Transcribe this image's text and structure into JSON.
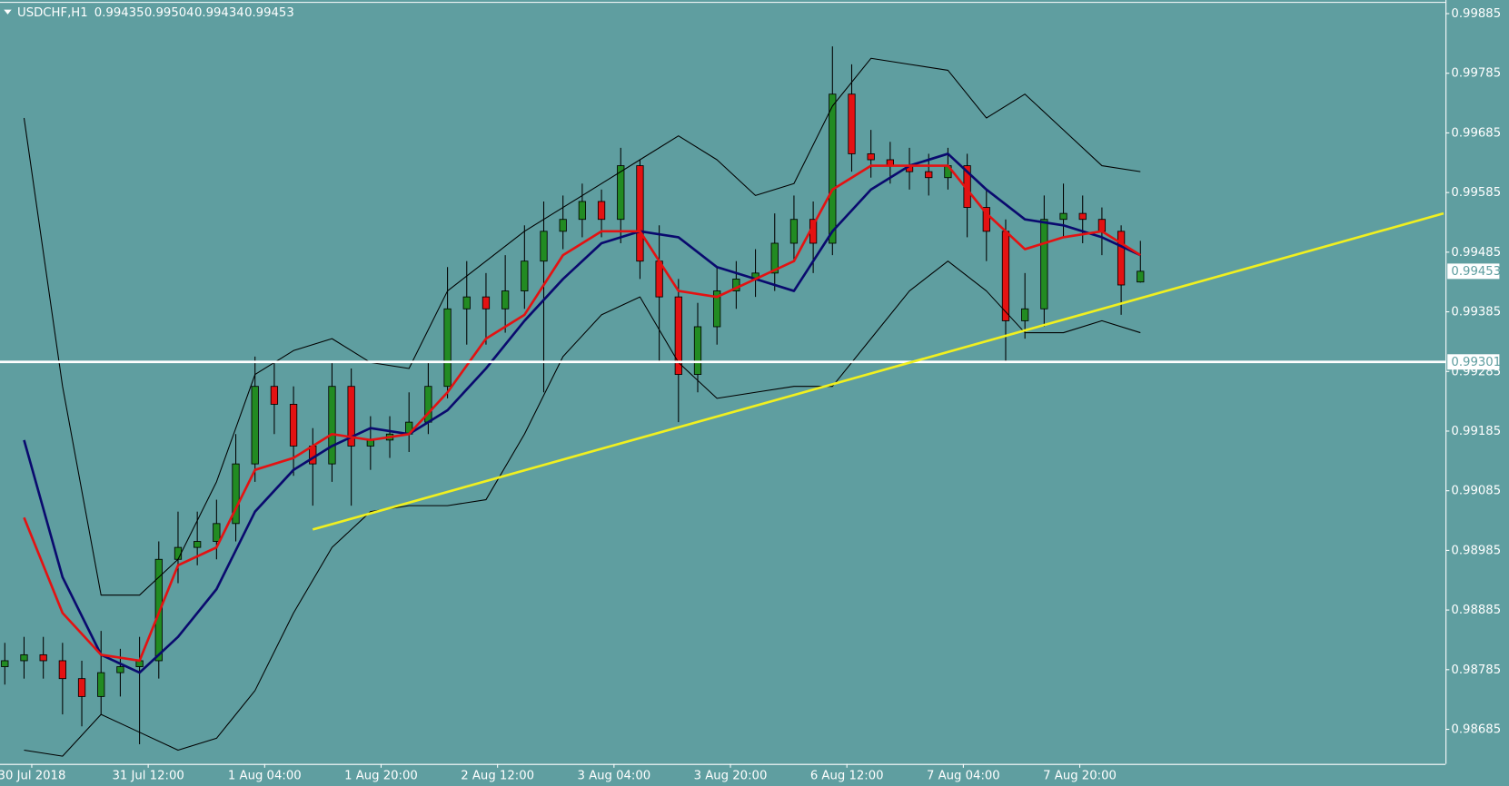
{
  "chart_data": {
    "type": "candlestick",
    "title": "USDCHF,H1",
    "ohlc_info": [
      0.99435,
      0.99504,
      0.99434,
      0.99453
    ],
    "up_color": "#228b22",
    "down_color": "#e31212",
    "wick_color": "#000000",
    "ylim": [
      0.98627,
      0.99903
    ],
    "yticks": [
      0.99885,
      0.99785,
      0.99685,
      0.99585,
      0.99485,
      0.99385,
      0.99285,
      0.99185,
      0.99085,
      0.98985,
      0.98885,
      0.98785,
      0.98685
    ],
    "xlabels": [
      "30 Jul 2018",
      "31 Jul 12:00",
      "1 Aug 04:00",
      "1 Aug 20:00",
      "2 Aug 12:00",
      "3 Aug 04:00",
      "3 Aug 20:00",
      "6 Aug 12:00",
      "7 Aug 04:00",
      "7 Aug 20:00"
    ],
    "open": [
      0.9879,
      0.988,
      0.9881,
      0.988,
      0.9877,
      0.9874,
      0.9878,
      0.9879,
      0.988,
      0.9897,
      0.9899,
      0.99,
      0.9903,
      0.9913,
      0.9926,
      0.9923,
      0.9916,
      0.9913,
      0.9926,
      0.9916,
      0.9917,
      0.9918,
      0.992,
      0.9926,
      0.9939,
      0.9941,
      0.9939,
      0.9942,
      0.9947,
      0.9952,
      0.9954,
      0.9957,
      0.9954,
      0.9963,
      0.9947,
      0.9941,
      0.9928,
      0.9936,
      0.9942,
      0.9944,
      0.9945,
      0.995,
      0.9954,
      0.995,
      0.9975,
      0.9965,
      0.9964,
      0.9963,
      0.9962,
      0.9961,
      0.9963,
      0.9956,
      0.9952,
      0.9937,
      0.9939,
      0.9954,
      0.9955,
      0.9954,
      0.9952,
      0.99435
    ],
    "high": [
      0.9883,
      0.9884,
      0.9884,
      0.9883,
      0.988,
      0.9885,
      0.9882,
      0.9884,
      0.99,
      0.9905,
      0.9905,
      0.9907,
      0.9918,
      0.9931,
      0.993,
      0.9926,
      0.9919,
      0.993,
      0.9929,
      0.9921,
      0.9921,
      0.9925,
      0.993,
      0.9946,
      0.9947,
      0.9945,
      0.9948,
      0.9953,
      0.9957,
      0.9958,
      0.996,
      0.9959,
      0.9966,
      0.9964,
      0.9953,
      0.9944,
      0.994,
      0.9946,
      0.9947,
      0.9949,
      0.9955,
      0.9958,
      0.9957,
      0.9983,
      0.998,
      0.9969,
      0.9967,
      0.9966,
      0.9965,
      0.9966,
      0.9965,
      0.9959,
      0.9954,
      0.9945,
      0.9958,
      0.996,
      0.9958,
      0.9956,
      0.9953,
      0.99504
    ],
    "low": [
      0.9876,
      0.9877,
      0.9877,
      0.9871,
      0.9869,
      0.9871,
      0.9874,
      0.9866,
      0.9877,
      0.9893,
      0.9896,
      0.9897,
      0.99,
      0.991,
      0.9918,
      0.9911,
      0.9906,
      0.991,
      0.9906,
      0.9912,
      0.9914,
      0.9915,
      0.9918,
      0.9924,
      0.9933,
      0.9933,
      0.9935,
      0.9939,
      0.9925,
      0.9949,
      0.9951,
      0.9951,
      0.995,
      0.9944,
      0.993,
      0.992,
      0.9925,
      0.9933,
      0.9939,
      0.9941,
      0.9942,
      0.9947,
      0.9945,
      0.9948,
      0.9962,
      0.9961,
      0.996,
      0.9959,
      0.9958,
      0.9959,
      0.9951,
      0.9947,
      0.993,
      0.9934,
      0.9936,
      0.9951,
      0.995,
      0.9948,
      0.9938,
      0.99434
    ],
    "close": [
      0.988,
      0.9881,
      0.988,
      0.9877,
      0.9874,
      0.9878,
      0.9879,
      0.988,
      0.9897,
      0.9899,
      0.99,
      0.9903,
      0.9913,
      0.9926,
      0.9923,
      0.9916,
      0.9913,
      0.9926,
      0.9916,
      0.9917,
      0.9918,
      0.992,
      0.9926,
      0.9939,
      0.9941,
      0.9939,
      0.9942,
      0.9947,
      0.9952,
      0.9954,
      0.9957,
      0.9954,
      0.9963,
      0.9947,
      0.9941,
      0.9928,
      0.9936,
      0.9942,
      0.9944,
      0.9945,
      0.995,
      0.9954,
      0.995,
      0.9975,
      0.9965,
      0.9964,
      0.9963,
      0.9962,
      0.9961,
      0.9963,
      0.9956,
      0.9952,
      0.9937,
      0.9939,
      0.9954,
      0.9955,
      0.9954,
      0.9952,
      0.9943,
      0.99453
    ],
    "indicators": [
      {
        "color": "#000000",
        "width": 1,
        "values": [
          0.9971,
          0.9926,
          0.9891,
          0.9891,
          0.9897,
          0.991,
          0.9928,
          0.9932,
          0.9934,
          0.993,
          0.9929,
          0.9942,
          0.9947,
          0.9952,
          0.9956,
          0.996,
          0.9964,
          0.9968,
          0.9964,
          0.9958,
          0.996,
          0.9973,
          0.9981,
          0.998,
          0.9979,
          0.9971,
          0.9975,
          0.9969,
          0.9963,
          0.9962
        ]
      },
      {
        "color": "#000000",
        "width": 1,
        "values": [
          0.9865,
          0.9864,
          0.9871,
          0.9868,
          0.9865,
          0.9867,
          0.9875,
          0.9888,
          0.9899,
          0.9905,
          0.9906,
          0.9906,
          0.9907,
          0.9918,
          0.9931,
          0.9938,
          0.9941,
          0.993,
          0.9924,
          0.9925,
          0.9926,
          0.9926,
          0.9934,
          0.9942,
          0.9947,
          0.9942,
          0.9935,
          0.9935,
          0.9937,
          0.9935
        ]
      },
      {
        "color": "#0a0a6e",
        "width": 2.5,
        "values": [
          0.9917,
          0.9894,
          0.9881,
          0.9878,
          0.9884,
          0.9892,
          0.9905,
          0.9912,
          0.9916,
          0.9919,
          0.9918,
          0.9922,
          0.9929,
          0.9937,
          0.9944,
          0.995,
          0.9952,
          0.9951,
          0.9946,
          0.9944,
          0.9942,
          0.9952,
          0.9959,
          0.9963,
          0.9965,
          0.9959,
          0.9954,
          0.9953,
          0.9951,
          0.9948
        ]
      },
      {
        "color": "#e31212",
        "width": 2.5,
        "values": [
          0.9904,
          0.9888,
          0.9881,
          0.988,
          0.9896,
          0.9899,
          0.9912,
          0.9914,
          0.9918,
          0.9917,
          0.9918,
          0.9925,
          0.9934,
          0.9938,
          0.9948,
          0.9952,
          0.9952,
          0.9942,
          0.9941,
          0.9944,
          0.9947,
          0.9959,
          0.9963,
          0.9963,
          0.9963,
          0.9955,
          0.9949,
          0.9951,
          0.9952,
          0.9948
        ]
      }
    ],
    "trendline": {
      "color": "#f0f020",
      "values": [
        0.9902,
        0.9955
      ]
    },
    "hline": {
      "color": "#ffffff",
      "value": 0.99301
    },
    "current_price": 0.99453
  }
}
